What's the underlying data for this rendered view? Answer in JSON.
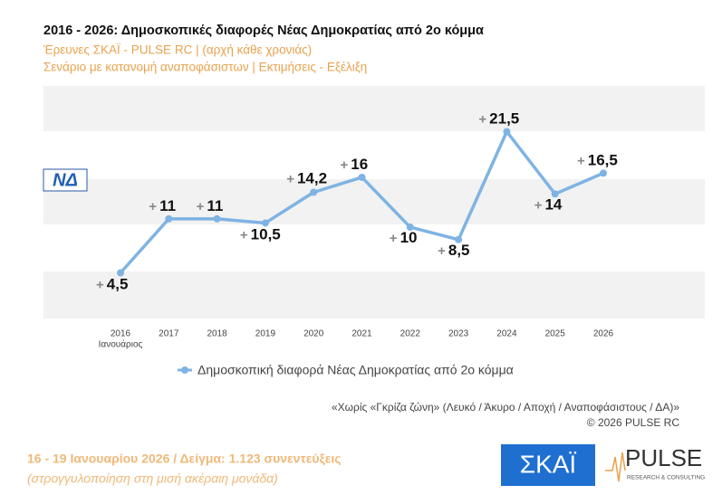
{
  "chart_data": {
    "type": "line",
    "title": "2016 - 2026: Δημοσκοπικές διαφορές Νέας Δημοκρατίας από 2ο κόμμα",
    "subtitle": [
      "Έρευνες ΣΚΑΪ - PULSE RC  |  (αρχή κάθε χρονιάς)",
      "Σενάριο με κατανομή αναποφάσιστων  |  Εκτιμήσεις - Εξέλιξη"
    ],
    "categories": [
      "2016",
      "2017",
      "2018",
      "2019",
      "2020",
      "2021",
      "2022",
      "2023",
      "2024",
      "2025",
      "2026"
    ],
    "category_note": "Ιανουάριος",
    "series": [
      {
        "name": "Δημοσκοπική διαφορά Νέας Δημοκρατίας από 2ο κόμμα",
        "color": "#7fb3e3",
        "values": [
          4.5,
          11,
          11,
          10.5,
          14.2,
          16,
          10,
          8.5,
          21.5,
          14,
          16.5
        ],
        "value_labels": [
          "4,5",
          "11",
          "11",
          "10,5",
          "14,2",
          "16",
          "10",
          "8,5",
          "21,5",
          "14",
          "16,5"
        ]
      }
    ],
    "value_prefix": "+",
    "ylim": [
      -1,
      27
    ],
    "party_logo": "ΝΔ",
    "notes": [
      "«Χωρίς «Γκρίζα ζώνη»  (Λευκό / Άκυρο / Αποχή / Αναποφάσιστους / ΔΑ)»",
      "©  2026  PULSE RC"
    ],
    "footer": [
      "16 - 19 Ιανουαρίου 2026  /  Δείγμα:  1.123 συνεντεύξεις",
      "(στρογγυλοποίηση στη μισή ακέραιη μονάδα)"
    ],
    "logos": [
      "ΣΚΑΪ",
      "PULSE",
      "RESEARCH & CONSULTING"
    ]
  }
}
